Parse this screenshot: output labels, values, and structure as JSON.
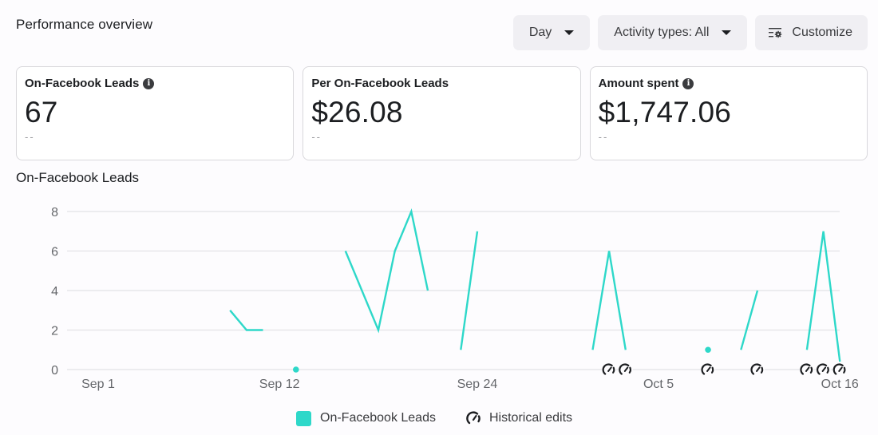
{
  "header": {
    "title": "Performance overview",
    "toolbar": {
      "period_label": "Day",
      "activity_label": "Activity types: All",
      "customize_label": "Customize"
    }
  },
  "cards": [
    {
      "label": "On-Facebook Leads",
      "value": "67",
      "compare": "--",
      "has_info": true
    },
    {
      "label": "Per On-Facebook Leads",
      "value": "$26.08",
      "compare": "--",
      "has_info": false
    },
    {
      "label": "Amount spent",
      "value": "$1,747.06",
      "compare": "--",
      "has_info": true
    }
  ],
  "chart": {
    "title": "On-Facebook Leads",
    "legend": {
      "series_label": "On-Facebook Leads",
      "edits_label": "Historical edits"
    }
  },
  "colors": {
    "series": "#2ed8c9",
    "grid": "#e3e2e6",
    "axis_text": "#65676b"
  },
  "chart_data": {
    "type": "line",
    "title": "On-Facebook Leads",
    "xlabel": "",
    "ylabel": "",
    "ylim": [
      0,
      8
    ],
    "yticks": [
      0,
      2,
      4,
      6,
      8
    ],
    "xtick_labels": [
      "Sep 1",
      "Sep 12",
      "Sep 24",
      "Oct 5",
      "Oct 16"
    ],
    "grid": true,
    "legend_position": "bottom",
    "series": [
      {
        "name": "On-Facebook Leads",
        "segments": [
          [
            {
              "x": "Sep 9",
              "y": 3
            },
            {
              "x": "Sep 10",
              "y": 2
            },
            {
              "x": "Sep 11",
              "y": 2
            }
          ],
          [
            {
              "x": "Sep 13",
              "y": 0
            }
          ],
          [
            {
              "x": "Sep 16",
              "y": 6
            },
            {
              "x": "Sep 18",
              "y": 2
            },
            {
              "x": "Sep 19",
              "y": 6
            },
            {
              "x": "Sep 20",
              "y": 8
            },
            {
              "x": "Sep 21",
              "y": 4
            }
          ],
          [
            {
              "x": "Sep 23",
              "y": 1
            },
            {
              "x": "Sep 24",
              "y": 7
            }
          ],
          [
            {
              "x": "Oct 1",
              "y": 1
            },
            {
              "x": "Oct 2",
              "y": 6
            },
            {
              "x": "Oct 3",
              "y": 1
            }
          ],
          [
            {
              "x": "Oct 8",
              "y": 1
            }
          ],
          [
            {
              "x": "Oct 10",
              "y": 1
            },
            {
              "x": "Oct 11",
              "y": 4
            }
          ],
          [
            {
              "x": "Oct 14",
              "y": 1
            },
            {
              "x": "Oct 15",
              "y": 7
            },
            {
              "x": "Oct 16",
              "y": 0.4
            }
          ]
        ]
      }
    ],
    "historical_edits": [
      "Oct 2",
      "Oct 3",
      "Oct 8",
      "Oct 11",
      "Oct 14",
      "Oct 15",
      "Oct 16"
    ]
  }
}
